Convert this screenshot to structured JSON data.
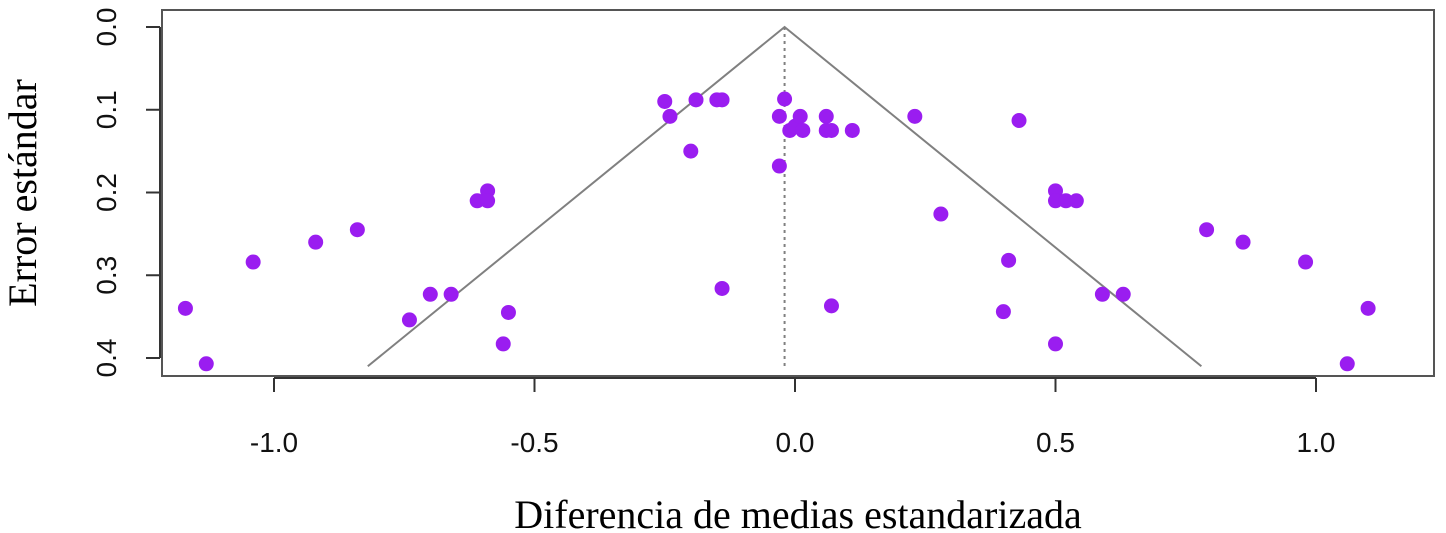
{
  "chart_data": {
    "type": "scatter",
    "title": "",
    "xlabel": "Diferencia de medias estandarizada",
    "ylabel": "Error estándar",
    "xlim": [
      -1.22,
      1.22
    ],
    "ylim": [
      0.42,
      -0.02
    ],
    "y_reversed": true,
    "x_ticks": [
      {
        "value": -1.0,
        "label": "-1.0"
      },
      {
        "value": -0.5,
        "label": "-0.5"
      },
      {
        "value": 0.0,
        "label": "0.0"
      },
      {
        "value": 0.5,
        "label": "0.5"
      },
      {
        "value": 1.0,
        "label": "1.0"
      }
    ],
    "y_ticks": [
      {
        "value": 0.0,
        "label": "0.0"
      },
      {
        "value": 0.1,
        "label": "0.1"
      },
      {
        "value": 0.2,
        "label": "0.2"
      },
      {
        "value": 0.3,
        "label": "0.3"
      },
      {
        "value": 0.4,
        "label": "0.4"
      }
    ],
    "grid": false,
    "legend": "none",
    "point_color": "#9a1df0",
    "funnel": {
      "center": -0.02,
      "apex_se": 0.0,
      "base_se": 0.41,
      "left_base": -0.82,
      "right_base": 0.78,
      "line_color": "#808080",
      "center_line_style": "dotted"
    },
    "points": [
      {
        "x": -0.25,
        "y": 0.09
      },
      {
        "x": -0.19,
        "y": 0.088
      },
      {
        "x": -0.15,
        "y": 0.088
      },
      {
        "x": -0.14,
        "y": 0.088
      },
      {
        "x": -0.24,
        "y": 0.108
      },
      {
        "x": -0.2,
        "y": 0.15
      },
      {
        "x": -0.02,
        "y": 0.087
      },
      {
        "x": -0.03,
        "y": 0.108
      },
      {
        "x": -0.01,
        "y": 0.125
      },
      {
        "x": 0.0,
        "y": 0.12
      },
      {
        "x": 0.01,
        "y": 0.108
      },
      {
        "x": 0.015,
        "y": 0.125
      },
      {
        "x": 0.06,
        "y": 0.108
      },
      {
        "x": 0.06,
        "y": 0.125
      },
      {
        "x": 0.07,
        "y": 0.125
      },
      {
        "x": 0.11,
        "y": 0.125
      },
      {
        "x": -0.03,
        "y": 0.168
      },
      {
        "x": 0.23,
        "y": 0.108
      },
      {
        "x": 0.43,
        "y": 0.113
      },
      {
        "x": -0.59,
        "y": 0.198
      },
      {
        "x": -0.61,
        "y": 0.21
      },
      {
        "x": -0.59,
        "y": 0.21
      },
      {
        "x": -0.84,
        "y": 0.245
      },
      {
        "x": -0.92,
        "y": 0.26
      },
      {
        "x": -1.04,
        "y": 0.284
      },
      {
        "x": -1.17,
        "y": 0.34
      },
      {
        "x": -1.13,
        "y": 0.407
      },
      {
        "x": -0.7,
        "y": 0.323
      },
      {
        "x": -0.66,
        "y": 0.323
      },
      {
        "x": -0.74,
        "y": 0.354
      },
      {
        "x": -0.55,
        "y": 0.345
      },
      {
        "x": -0.56,
        "y": 0.383
      },
      {
        "x": -0.14,
        "y": 0.316
      },
      {
        "x": 0.07,
        "y": 0.337
      },
      {
        "x": 0.28,
        "y": 0.226
      },
      {
        "x": 0.41,
        "y": 0.282
      },
      {
        "x": 0.4,
        "y": 0.344
      },
      {
        "x": 0.5,
        "y": 0.198
      },
      {
        "x": 0.5,
        "y": 0.21
      },
      {
        "x": 0.52,
        "y": 0.21
      },
      {
        "x": 0.54,
        "y": 0.21
      },
      {
        "x": 0.5,
        "y": 0.383
      },
      {
        "x": 0.59,
        "y": 0.323
      },
      {
        "x": 0.63,
        "y": 0.323
      },
      {
        "x": 0.79,
        "y": 0.245
      },
      {
        "x": 0.86,
        "y": 0.26
      },
      {
        "x": 0.98,
        "y": 0.284
      },
      {
        "x": 1.1,
        "y": 0.34
      },
      {
        "x": 1.06,
        "y": 0.407
      }
    ]
  }
}
